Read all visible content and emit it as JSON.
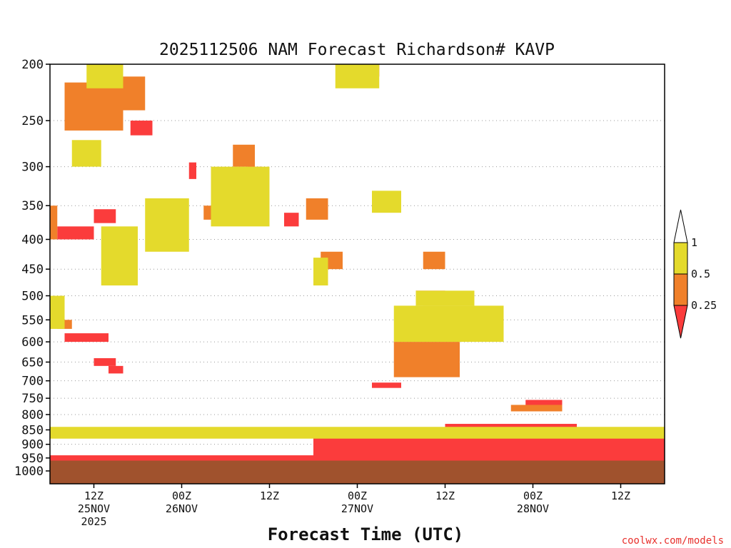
{
  "chart_data": {
    "type": "heatmap",
    "title": "2025112506 NAM Forecast Richardson# KAVP",
    "xlabel": "Forecast Time (UTC)",
    "ylabel": "",
    "y_scale": "log-pressure",
    "y_units": "hPa",
    "ylim": [
      1000,
      200
    ],
    "y_ticks": [
      "200",
      "250",
      "300",
      "350",
      "400",
      "450",
      "500",
      "550",
      "600",
      "650",
      "700",
      "750",
      "800",
      "850",
      "900",
      "950",
      "1000"
    ],
    "x_start": "2025-11-25T06Z",
    "x_end": "2025-11-28T18Z",
    "x_ticks": [
      {
        "label": "12Z",
        "date": "25NOV",
        "year": "2025"
      },
      {
        "label": "00Z",
        "date": "26NOV",
        "year": ""
      },
      {
        "label": "12Z",
        "date": "",
        "year": ""
      },
      {
        "label": "00Z",
        "date": "27NOV",
        "year": ""
      },
      {
        "label": "12Z",
        "date": "",
        "year": ""
      },
      {
        "label": "00Z",
        "date": "28NOV",
        "year": ""
      },
      {
        "label": "12Z",
        "date": "",
        "year": ""
      }
    ],
    "colorbar": {
      "levels": [
        "1",
        "0.5",
        "0.25"
      ],
      "bins": [
        {
          "range": "0.5-1",
          "color": "#e4da2c"
        },
        {
          "range": "0.25-0.5",
          "color": "#f0802a"
        },
        {
          "range": "<0.25",
          "color": "#fb3c3c"
        }
      ]
    },
    "ground_color": "#a0522d",
    "grid": "dotted horizontal",
    "regions": [
      {
        "level": "lt0.25",
        "t": [
          0,
          84
        ],
        "p_low": 960,
        "p_high": 940
      },
      {
        "level": "lt0.25",
        "t": [
          36,
          84
        ],
        "p_low": 950,
        "p_high": 860
      },
      {
        "level": "lt0.25",
        "t": [
          54,
          72
        ],
        "p_low": 940,
        "p_high": 830
      },
      {
        "level": "lt0.25",
        "t": [
          2,
          8
        ],
        "p_low": 600,
        "p_high": 580
      },
      {
        "level": "lt0.25",
        "t": [
          6,
          9
        ],
        "p_low": 660,
        "p_high": 640
      },
      {
        "level": "lt0.25",
        "t": [
          8,
          10
        ],
        "p_low": 680,
        "p_high": 660
      },
      {
        "level": "lt0.25",
        "t": [
          1,
          6
        ],
        "p_low": 400,
        "p_high": 380
      },
      {
        "level": "lt0.25",
        "t": [
          6,
          9
        ],
        "p_low": 375,
        "p_high": 355
      },
      {
        "level": "lt0.25",
        "t": [
          6,
          9
        ],
        "p_low": 240,
        "p_high": 222
      },
      {
        "level": "lt0.25",
        "t": [
          11,
          14
        ],
        "p_low": 265,
        "p_high": 250
      },
      {
        "level": "lt0.25",
        "t": [
          19,
          20
        ],
        "p_low": 315,
        "p_high": 295
      },
      {
        "level": "lt0.25",
        "t": [
          27,
          29
        ],
        "p_low": 320,
        "p_high": 300
      },
      {
        "level": "lt0.25",
        "t": [
          32,
          34
        ],
        "p_low": 380,
        "p_high": 360
      },
      {
        "level": "lt0.25",
        "t": [
          42,
          45
        ],
        "p_low": 210,
        "p_high": 200
      },
      {
        "level": "lt0.25",
        "t": [
          50,
          54
        ],
        "p_low": 515,
        "p_high": 490
      },
      {
        "level": "lt0.25",
        "t": [
          44,
          48
        ],
        "p_low": 720,
        "p_high": 705
      },
      {
        "level": "lt0.25",
        "t": [
          65,
          70
        ],
        "p_low": 780,
        "p_high": 755
      },
      {
        "level": "0.25-0.5",
        "t": [
          2,
          10
        ],
        "p_low": 260,
        "p_high": 215
      },
      {
        "level": "0.25-0.5",
        "t": [
          10,
          13
        ],
        "p_low": 240,
        "p_high": 210
      },
      {
        "level": "0.25-0.5",
        "t": [
          47,
          56
        ],
        "p_low": 690,
        "p_high": 600
      },
      {
        "level": "0.25-0.5",
        "t": [
          35,
          38
        ],
        "p_low": 370,
        "p_high": 340
      },
      {
        "level": "0.25-0.5",
        "t": [
          37,
          40
        ],
        "p_low": 450,
        "p_high": 420
      },
      {
        "level": "0.25-0.5",
        "t": [
          51,
          54
        ],
        "p_low": 450,
        "p_high": 420
      },
      {
        "level": "0.25-0.5",
        "t": [
          51,
          58
        ],
        "p_low": 560,
        "p_high": 520
      },
      {
        "level": "0.25-0.5",
        "t": [
          25,
          28
        ],
        "p_low": 300,
        "p_high": 275
      },
      {
        "level": "0.25-0.5",
        "t": [
          21,
          24
        ],
        "p_low": 370,
        "p_high": 350
      },
      {
        "level": "0.25-0.5",
        "t": [
          0,
          1
        ],
        "p_low": 400,
        "p_high": 350
      },
      {
        "level": "0.25-0.5",
        "t": [
          1,
          3
        ],
        "p_low": 570,
        "p_high": 550
      },
      {
        "level": "0.25-0.5",
        "t": [
          63,
          70
        ],
        "p_low": 790,
        "p_high": 770
      },
      {
        "level": "0.5-1",
        "t": [
          47,
          62
        ],
        "p_low": 600,
        "p_high": 520
      },
      {
        "level": "0.5-1",
        "t": [
          50,
          58
        ],
        "p_low": 520,
        "p_high": 490
      },
      {
        "level": "0.5-1",
        "t": [
          44,
          48
        ],
        "p_low": 360,
        "p_high": 330
      },
      {
        "level": "0.5-1",
        "t": [
          36,
          38
        ],
        "p_low": 480,
        "p_high": 430
      },
      {
        "level": "0.5-1",
        "t": [
          22,
          30
        ],
        "p_low": 380,
        "p_high": 300
      },
      {
        "level": "0.5-1",
        "t": [
          13,
          19
        ],
        "p_low": 420,
        "p_high": 340
      },
      {
        "level": "0.5-1",
        "t": [
          7,
          12
        ],
        "p_low": 480,
        "p_high": 380
      },
      {
        "level": "0.5-1",
        "t": [
          0,
          2
        ],
        "p_low": 570,
        "p_high": 500
      },
      {
        "level": "0.5-1",
        "t": [
          5,
          10
        ],
        "p_low": 220,
        "p_high": 200
      },
      {
        "level": "0.5-1",
        "t": [
          39,
          45
        ],
        "p_low": 220,
        "p_high": 200
      },
      {
        "level": "0.5-1",
        "t": [
          3,
          7
        ],
        "p_low": 300,
        "p_high": 270
      },
      {
        "level": "0.5-1",
        "t": [
          0,
          84
        ],
        "p_low": 880,
        "p_high": 840
      }
    ]
  },
  "credit": "coolwx.com/models"
}
